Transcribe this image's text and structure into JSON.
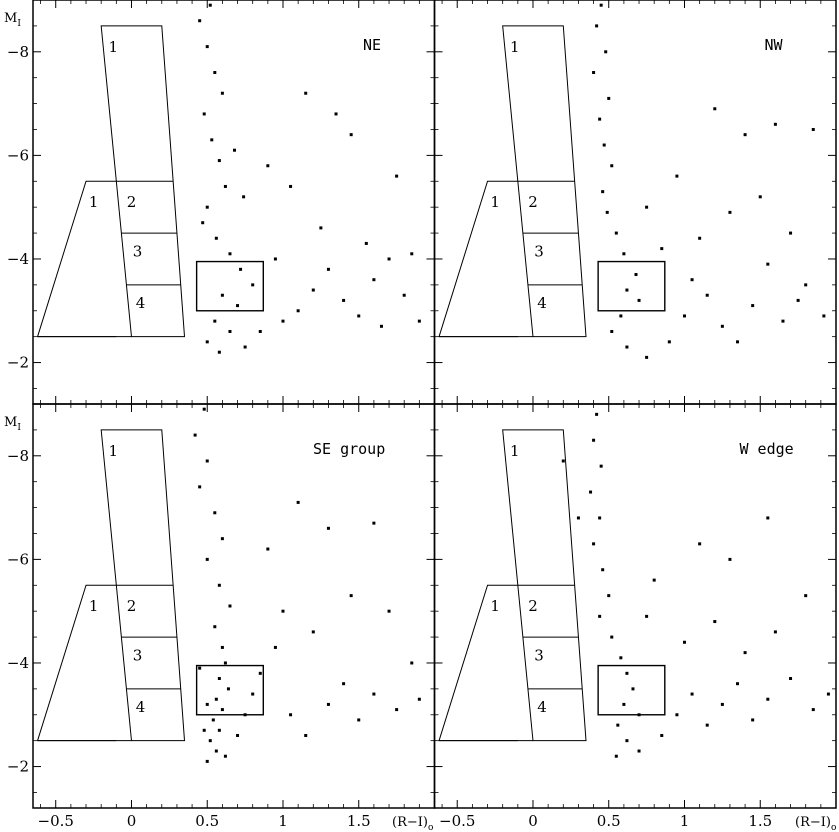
{
  "figure": {
    "y_axis_label": "M",
    "y_axis_label_sub": "I",
    "x_axis_label": "(R−I)",
    "x_axis_label_sub": "o"
  },
  "chart_data": [
    {
      "type": "scatter",
      "panel_label": "NE",
      "xlabel": "(R−I)o",
      "ylabel": "MI",
      "xlim": [
        -0.65,
        2.0
      ],
      "ylim": [
        -1.2,
        -9.0
      ],
      "x_ticks": [
        -0.5,
        0,
        0.5,
        1,
        1.5
      ],
      "x_tick_labels": [
        "−0.5",
        "0",
        "0.5",
        "1",
        "1.5"
      ],
      "y_ticks": [
        -8,
        -6,
        -4,
        -2
      ],
      "y_tick_labels": [
        "−8",
        "−6",
        "−4",
        "−2"
      ],
      "grid": false,
      "overlay_regions": [
        {
          "label": "1",
          "shape": "parallelogram",
          "corners": [
            [
              -0.2,
              -8.5
            ],
            [
              0.2,
              -8.5
            ],
            [
              0.35,
              -2.5
            ],
            [
              0.0,
              -2.5
            ]
          ]
        },
        {
          "label": "2",
          "range": [
            -5.5,
            -4.5
          ]
        },
        {
          "label": "3",
          "range": [
            -4.5,
            -3.5
          ]
        },
        {
          "label": "4",
          "range": [
            -3.5,
            -2.5
          ]
        },
        {
          "label": "1",
          "shape": "trapezoid",
          "corners": [
            [
              -0.3,
              -5.5
            ],
            [
              -0.1,
              -5.5
            ],
            [
              -0.1,
              -2.5
            ],
            [
              -0.62,
              -2.5
            ]
          ]
        },
        {
          "label": "",
          "shape": "box",
          "x": [
            0.43,
            0.87
          ],
          "y": [
            -3.0,
            -3.95
          ]
        }
      ],
      "points": [
        [
          0.52,
          -8.9
        ],
        [
          0.45,
          -8.6
        ],
        [
          0.5,
          -8.1
        ],
        [
          0.55,
          -7.6
        ],
        [
          0.6,
          -7.2
        ],
        [
          0.48,
          -6.8
        ],
        [
          0.53,
          -6.3
        ],
        [
          0.58,
          -5.9
        ],
        [
          0.62,
          -5.4
        ],
        [
          0.5,
          -5.0
        ],
        [
          0.47,
          -4.7
        ],
        [
          0.56,
          -4.4
        ],
        [
          0.65,
          -4.1
        ],
        [
          0.72,
          -3.8
        ],
        [
          0.8,
          -3.5
        ],
        [
          0.6,
          -3.3
        ],
        [
          0.7,
          -3.1
        ],
        [
          0.55,
          -2.8
        ],
        [
          0.65,
          -2.6
        ],
        [
          0.5,
          -2.4
        ],
        [
          0.58,
          -2.2
        ],
        [
          0.75,
          -2.3
        ],
        [
          0.85,
          -2.6
        ],
        [
          1.0,
          -2.8
        ],
        [
          1.1,
          -3.0
        ],
        [
          1.2,
          -3.4
        ],
        [
          1.3,
          -3.8
        ],
        [
          1.4,
          -3.2
        ],
        [
          1.5,
          -2.9
        ],
        [
          1.6,
          -3.6
        ],
        [
          1.7,
          -4.0
        ],
        [
          1.8,
          -3.3
        ],
        [
          1.9,
          -2.8
        ],
        [
          1.05,
          -5.4
        ],
        [
          1.25,
          -4.6
        ],
        [
          1.45,
          -6.4
        ],
        [
          1.55,
          -4.3
        ],
        [
          0.9,
          -5.8
        ],
        [
          1.15,
          -7.2
        ],
        [
          1.35,
          -6.8
        ],
        [
          1.75,
          -5.6
        ],
        [
          0.68,
          -6.1
        ],
        [
          0.74,
          -5.2
        ],
        [
          0.95,
          -4.0
        ],
        [
          1.65,
          -2.7
        ],
        [
          1.85,
          -4.1
        ]
      ]
    },
    {
      "type": "scatter",
      "panel_label": "NW",
      "xlabel": "(R−I)o",
      "ylabel": "MI",
      "xlim": [
        -0.65,
        2.0
      ],
      "ylim": [
        -1.2,
        -9.0
      ],
      "x_ticks": [
        -0.5,
        0,
        0.5,
        1,
        1.5
      ],
      "x_tick_labels": [
        "−0.5",
        "0",
        "0.5",
        "1",
        "1.5"
      ],
      "y_ticks": [
        -8,
        -6,
        -4,
        -2
      ],
      "y_tick_labels": [
        "−8",
        "−6",
        "−4",
        "−2"
      ],
      "grid": false,
      "overlay_regions": [
        {
          "label": "1",
          "shape": "parallelogram",
          "corners": [
            [
              -0.2,
              -8.5
            ],
            [
              0.2,
              -8.5
            ],
            [
              0.35,
              -2.5
            ],
            [
              0.0,
              -2.5
            ]
          ]
        },
        {
          "label": "2",
          "range": [
            -5.5,
            -4.5
          ]
        },
        {
          "label": "3",
          "range": [
            -4.5,
            -3.5
          ]
        },
        {
          "label": "4",
          "range": [
            -3.5,
            -2.5
          ]
        },
        {
          "label": "1",
          "shape": "trapezoid",
          "corners": [
            [
              -0.3,
              -5.5
            ],
            [
              -0.1,
              -5.5
            ],
            [
              -0.1,
              -2.5
            ],
            [
              -0.62,
              -2.5
            ]
          ]
        },
        {
          "label": "",
          "shape": "box",
          "x": [
            0.43,
            0.87
          ],
          "y": [
            -3.0,
            -3.95
          ]
        }
      ],
      "points": [
        [
          0.45,
          -8.9
        ],
        [
          0.42,
          -8.5
        ],
        [
          0.48,
          -8.0
        ],
        [
          0.4,
          -7.6
        ],
        [
          0.5,
          -7.1
        ],
        [
          0.44,
          -6.7
        ],
        [
          0.47,
          -6.2
        ],
        [
          0.52,
          -5.8
        ],
        [
          0.46,
          -5.3
        ],
        [
          0.49,
          -4.9
        ],
        [
          0.55,
          -4.5
        ],
        [
          0.6,
          -4.1
        ],
        [
          0.68,
          -3.7
        ],
        [
          0.62,
          -3.4
        ],
        [
          0.7,
          -3.2
        ],
        [
          0.58,
          -2.9
        ],
        [
          0.52,
          -2.6
        ],
        [
          0.62,
          -2.3
        ],
        [
          0.75,
          -2.1
        ],
        [
          0.9,
          -2.4
        ],
        [
          1.0,
          -2.9
        ],
        [
          1.15,
          -3.3
        ],
        [
          1.25,
          -2.7
        ],
        [
          1.35,
          -2.4
        ],
        [
          1.45,
          -3.1
        ],
        [
          1.55,
          -3.9
        ],
        [
          1.65,
          -2.8
        ],
        [
          1.8,
          -3.5
        ],
        [
          1.92,
          -2.9
        ],
        [
          1.1,
          -4.4
        ],
        [
          1.3,
          -4.9
        ],
        [
          1.5,
          -5.2
        ],
        [
          1.7,
          -4.5
        ],
        [
          0.95,
          -5.6
        ],
        [
          1.2,
          -6.9
        ],
        [
          1.4,
          -6.4
        ],
        [
          1.6,
          -6.6
        ],
        [
          1.85,
          -6.5
        ],
        [
          0.75,
          -5.0
        ],
        [
          0.85,
          -4.2
        ],
        [
          1.05,
          -3.6
        ],
        [
          1.75,
          -3.2
        ]
      ]
    },
    {
      "type": "scatter",
      "panel_label": "SE group",
      "xlabel": "(R−I)o",
      "ylabel": "MI",
      "xlim": [
        -0.65,
        2.0
      ],
      "ylim": [
        -1.2,
        -9.0
      ],
      "x_ticks": [
        -0.5,
        0,
        0.5,
        1,
        1.5
      ],
      "x_tick_labels": [
        "−0.5",
        "0",
        "0.5",
        "1",
        "1.5"
      ],
      "y_ticks": [
        -8,
        -6,
        -4,
        -2
      ],
      "y_tick_labels": [
        "−8",
        "−6",
        "−4",
        "−2"
      ],
      "grid": false,
      "overlay_regions": [
        {
          "label": "1",
          "shape": "parallelogram",
          "corners": [
            [
              -0.2,
              -8.5
            ],
            [
              0.2,
              -8.5
            ],
            [
              0.35,
              -2.5
            ],
            [
              0.0,
              -2.5
            ]
          ]
        },
        {
          "label": "2",
          "range": [
            -5.5,
            -4.5
          ]
        },
        {
          "label": "3",
          "range": [
            -4.5,
            -3.5
          ]
        },
        {
          "label": "4",
          "range": [
            -3.5,
            -2.5
          ]
        },
        {
          "label": "1",
          "shape": "trapezoid",
          "corners": [
            [
              -0.3,
              -5.5
            ],
            [
              -0.1,
              -5.5
            ],
            [
              -0.1,
              -2.5
            ],
            [
              -0.62,
              -2.5
            ]
          ]
        },
        {
          "label": "",
          "shape": "box",
          "x": [
            0.43,
            0.87
          ],
          "y": [
            -3.0,
            -3.95
          ]
        }
      ],
      "points": [
        [
          0.48,
          -8.9
        ],
        [
          0.42,
          -8.4
        ],
        [
          0.5,
          -7.9
        ],
        [
          0.45,
          -7.4
        ],
        [
          0.55,
          -6.9
        ],
        [
          0.6,
          -6.4
        ],
        [
          0.5,
          -6.0
        ],
        [
          0.58,
          -5.5
        ],
        [
          0.65,
          -5.1
        ],
        [
          0.55,
          -4.7
        ],
        [
          0.6,
          -4.3
        ],
        [
          0.62,
          -4.0
        ],
        [
          0.58,
          -3.7
        ],
        [
          0.64,
          -3.5
        ],
        [
          0.56,
          -3.3
        ],
        [
          0.6,
          -3.1
        ],
        [
          0.54,
          -2.9
        ],
        [
          0.58,
          -2.7
        ],
        [
          0.52,
          -2.5
        ],
        [
          0.56,
          -2.3
        ],
        [
          0.5,
          -2.1
        ],
        [
          0.62,
          -2.2
        ],
        [
          0.7,
          -2.6
        ],
        [
          0.75,
          -3.0
        ],
        [
          0.8,
          -3.4
        ],
        [
          0.85,
          -3.8
        ],
        [
          0.95,
          -4.3
        ],
        [
          1.05,
          -3.0
        ],
        [
          1.15,
          -2.6
        ],
        [
          1.3,
          -3.2
        ],
        [
          1.4,
          -3.6
        ],
        [
          1.5,
          -2.9
        ],
        [
          1.6,
          -3.4
        ],
        [
          1.75,
          -3.1
        ],
        [
          1.9,
          -3.3
        ],
        [
          1.0,
          -5.0
        ],
        [
          1.2,
          -4.6
        ],
        [
          1.45,
          -5.3
        ],
        [
          1.7,
          -5.0
        ],
        [
          0.9,
          -6.2
        ],
        [
          1.1,
          -7.1
        ],
        [
          1.3,
          -6.6
        ],
        [
          1.6,
          -6.7
        ],
        [
          1.85,
          -4.0
        ],
        [
          0.45,
          -3.9
        ],
        [
          0.5,
          -3.2
        ],
        [
          0.48,
          -2.7
        ]
      ]
    },
    {
      "type": "scatter",
      "panel_label": "W edge",
      "xlabel": "(R−I)o",
      "ylabel": "MI",
      "xlim": [
        -0.65,
        2.0
      ],
      "ylim": [
        -1.2,
        -9.0
      ],
      "x_ticks": [
        -0.5,
        0,
        0.5,
        1,
        1.5
      ],
      "x_tick_labels": [
        "−0.5",
        "0",
        "0.5",
        "1",
        "1.5"
      ],
      "y_ticks": [
        -8,
        -6,
        -4,
        -2
      ],
      "y_tick_labels": [
        "−8",
        "−6",
        "−4",
        "−2"
      ],
      "grid": false,
      "overlay_regions": [
        {
          "label": "1",
          "shape": "parallelogram",
          "corners": [
            [
              -0.2,
              -8.5
            ],
            [
              0.2,
              -8.5
            ],
            [
              0.35,
              -2.5
            ],
            [
              0.0,
              -2.5
            ]
          ]
        },
        {
          "label": "2",
          "range": [
            -5.5,
            -4.5
          ]
        },
        {
          "label": "3",
          "range": [
            -4.5,
            -3.5
          ]
        },
        {
          "label": "4",
          "range": [
            -3.5,
            -2.5
          ]
        },
        {
          "label": "1",
          "shape": "trapezoid",
          "corners": [
            [
              -0.3,
              -5.5
            ],
            [
              -0.1,
              -5.5
            ],
            [
              -0.1,
              -2.5
            ],
            [
              -0.62,
              -2.5
            ]
          ]
        },
        {
          "label": "",
          "shape": "box",
          "x": [
            0.43,
            0.87
          ],
          "y": [
            -3.0,
            -3.95
          ]
        }
      ],
      "points": [
        [
          0.42,
          -8.8
        ],
        [
          0.4,
          -8.3
        ],
        [
          0.45,
          -7.8
        ],
        [
          0.38,
          -7.3
        ],
        [
          0.44,
          -6.8
        ],
        [
          0.4,
          -6.3
        ],
        [
          0.46,
          -5.8
        ],
        [
          0.5,
          -5.3
        ],
        [
          0.44,
          -4.9
        ],
        [
          0.52,
          -4.5
        ],
        [
          0.58,
          -4.1
        ],
        [
          0.62,
          -3.8
        ],
        [
          0.66,
          -3.5
        ],
        [
          0.6,
          -3.2
        ],
        [
          0.7,
          -3.0
        ],
        [
          0.56,
          -2.8
        ],
        [
          0.62,
          -2.5
        ],
        [
          0.55,
          -2.2
        ],
        [
          0.7,
          -2.3
        ],
        [
          0.85,
          -2.6
        ],
        [
          0.95,
          -3.0
        ],
        [
          1.05,
          -3.4
        ],
        [
          1.15,
          -2.8
        ],
        [
          1.25,
          -3.2
        ],
        [
          1.35,
          -3.6
        ],
        [
          1.45,
          -2.9
        ],
        [
          1.55,
          -3.3
        ],
        [
          1.7,
          -3.7
        ],
        [
          1.85,
          -3.1
        ],
        [
          1.95,
          -3.4
        ],
        [
          1.0,
          -4.4
        ],
        [
          1.2,
          -4.8
        ],
        [
          1.4,
          -4.2
        ],
        [
          1.6,
          -4.6
        ],
        [
          0.8,
          -5.6
        ],
        [
          1.1,
          -6.3
        ],
        [
          1.3,
          -6.0
        ],
        [
          1.55,
          -6.8
        ],
        [
          1.8,
          -5.3
        ],
        [
          0.3,
          -6.8
        ],
        [
          0.2,
          -7.9
        ],
        [
          0.75,
          -4.9
        ]
      ]
    }
  ]
}
